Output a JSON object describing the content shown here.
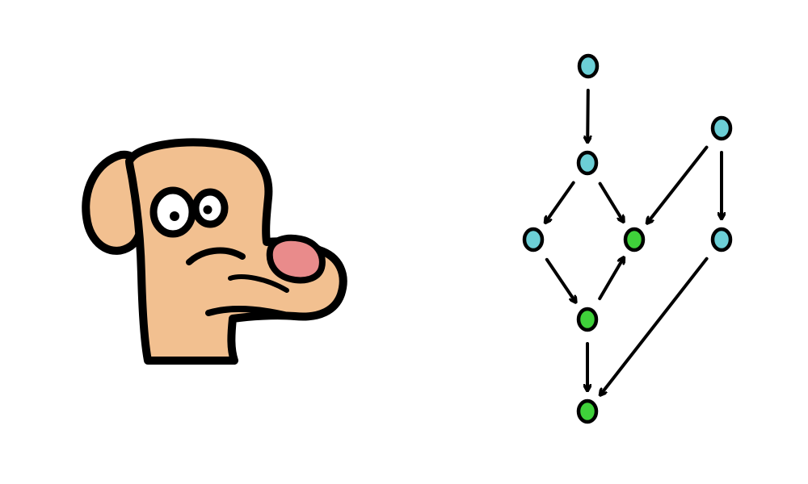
{
  "illustration": {
    "character": "dog-head",
    "colors": {
      "fur": "#f2c090",
      "nose": "#e98b8b",
      "outline": "#000000",
      "eye_white": "#ffffff"
    }
  },
  "graph": {
    "colors": {
      "unvisited": "#6ccfd6",
      "visited": "#3fd13a",
      "outline": "#000000",
      "edge": "#000000"
    },
    "nodes": [
      {
        "id": "n1",
        "state": "unvisited"
      },
      {
        "id": "n2",
        "state": "unvisited"
      },
      {
        "id": "n3",
        "state": "unvisited"
      },
      {
        "id": "n4",
        "state": "visited"
      },
      {
        "id": "n5",
        "state": "unvisited"
      },
      {
        "id": "n6",
        "state": "unvisited"
      },
      {
        "id": "n7",
        "state": "visited"
      },
      {
        "id": "n8",
        "state": "visited"
      }
    ],
    "edges": [
      {
        "from": "n1",
        "to": "n2"
      },
      {
        "from": "n2",
        "to": "n3"
      },
      {
        "from": "n2",
        "to": "n4"
      },
      {
        "from": "n5",
        "to": "n4"
      },
      {
        "from": "n5",
        "to": "n6"
      },
      {
        "from": "n3",
        "to": "n7"
      },
      {
        "from": "n7",
        "to": "n4"
      },
      {
        "from": "n7",
        "to": "n8"
      },
      {
        "from": "n6",
        "to": "n8"
      }
    ]
  }
}
